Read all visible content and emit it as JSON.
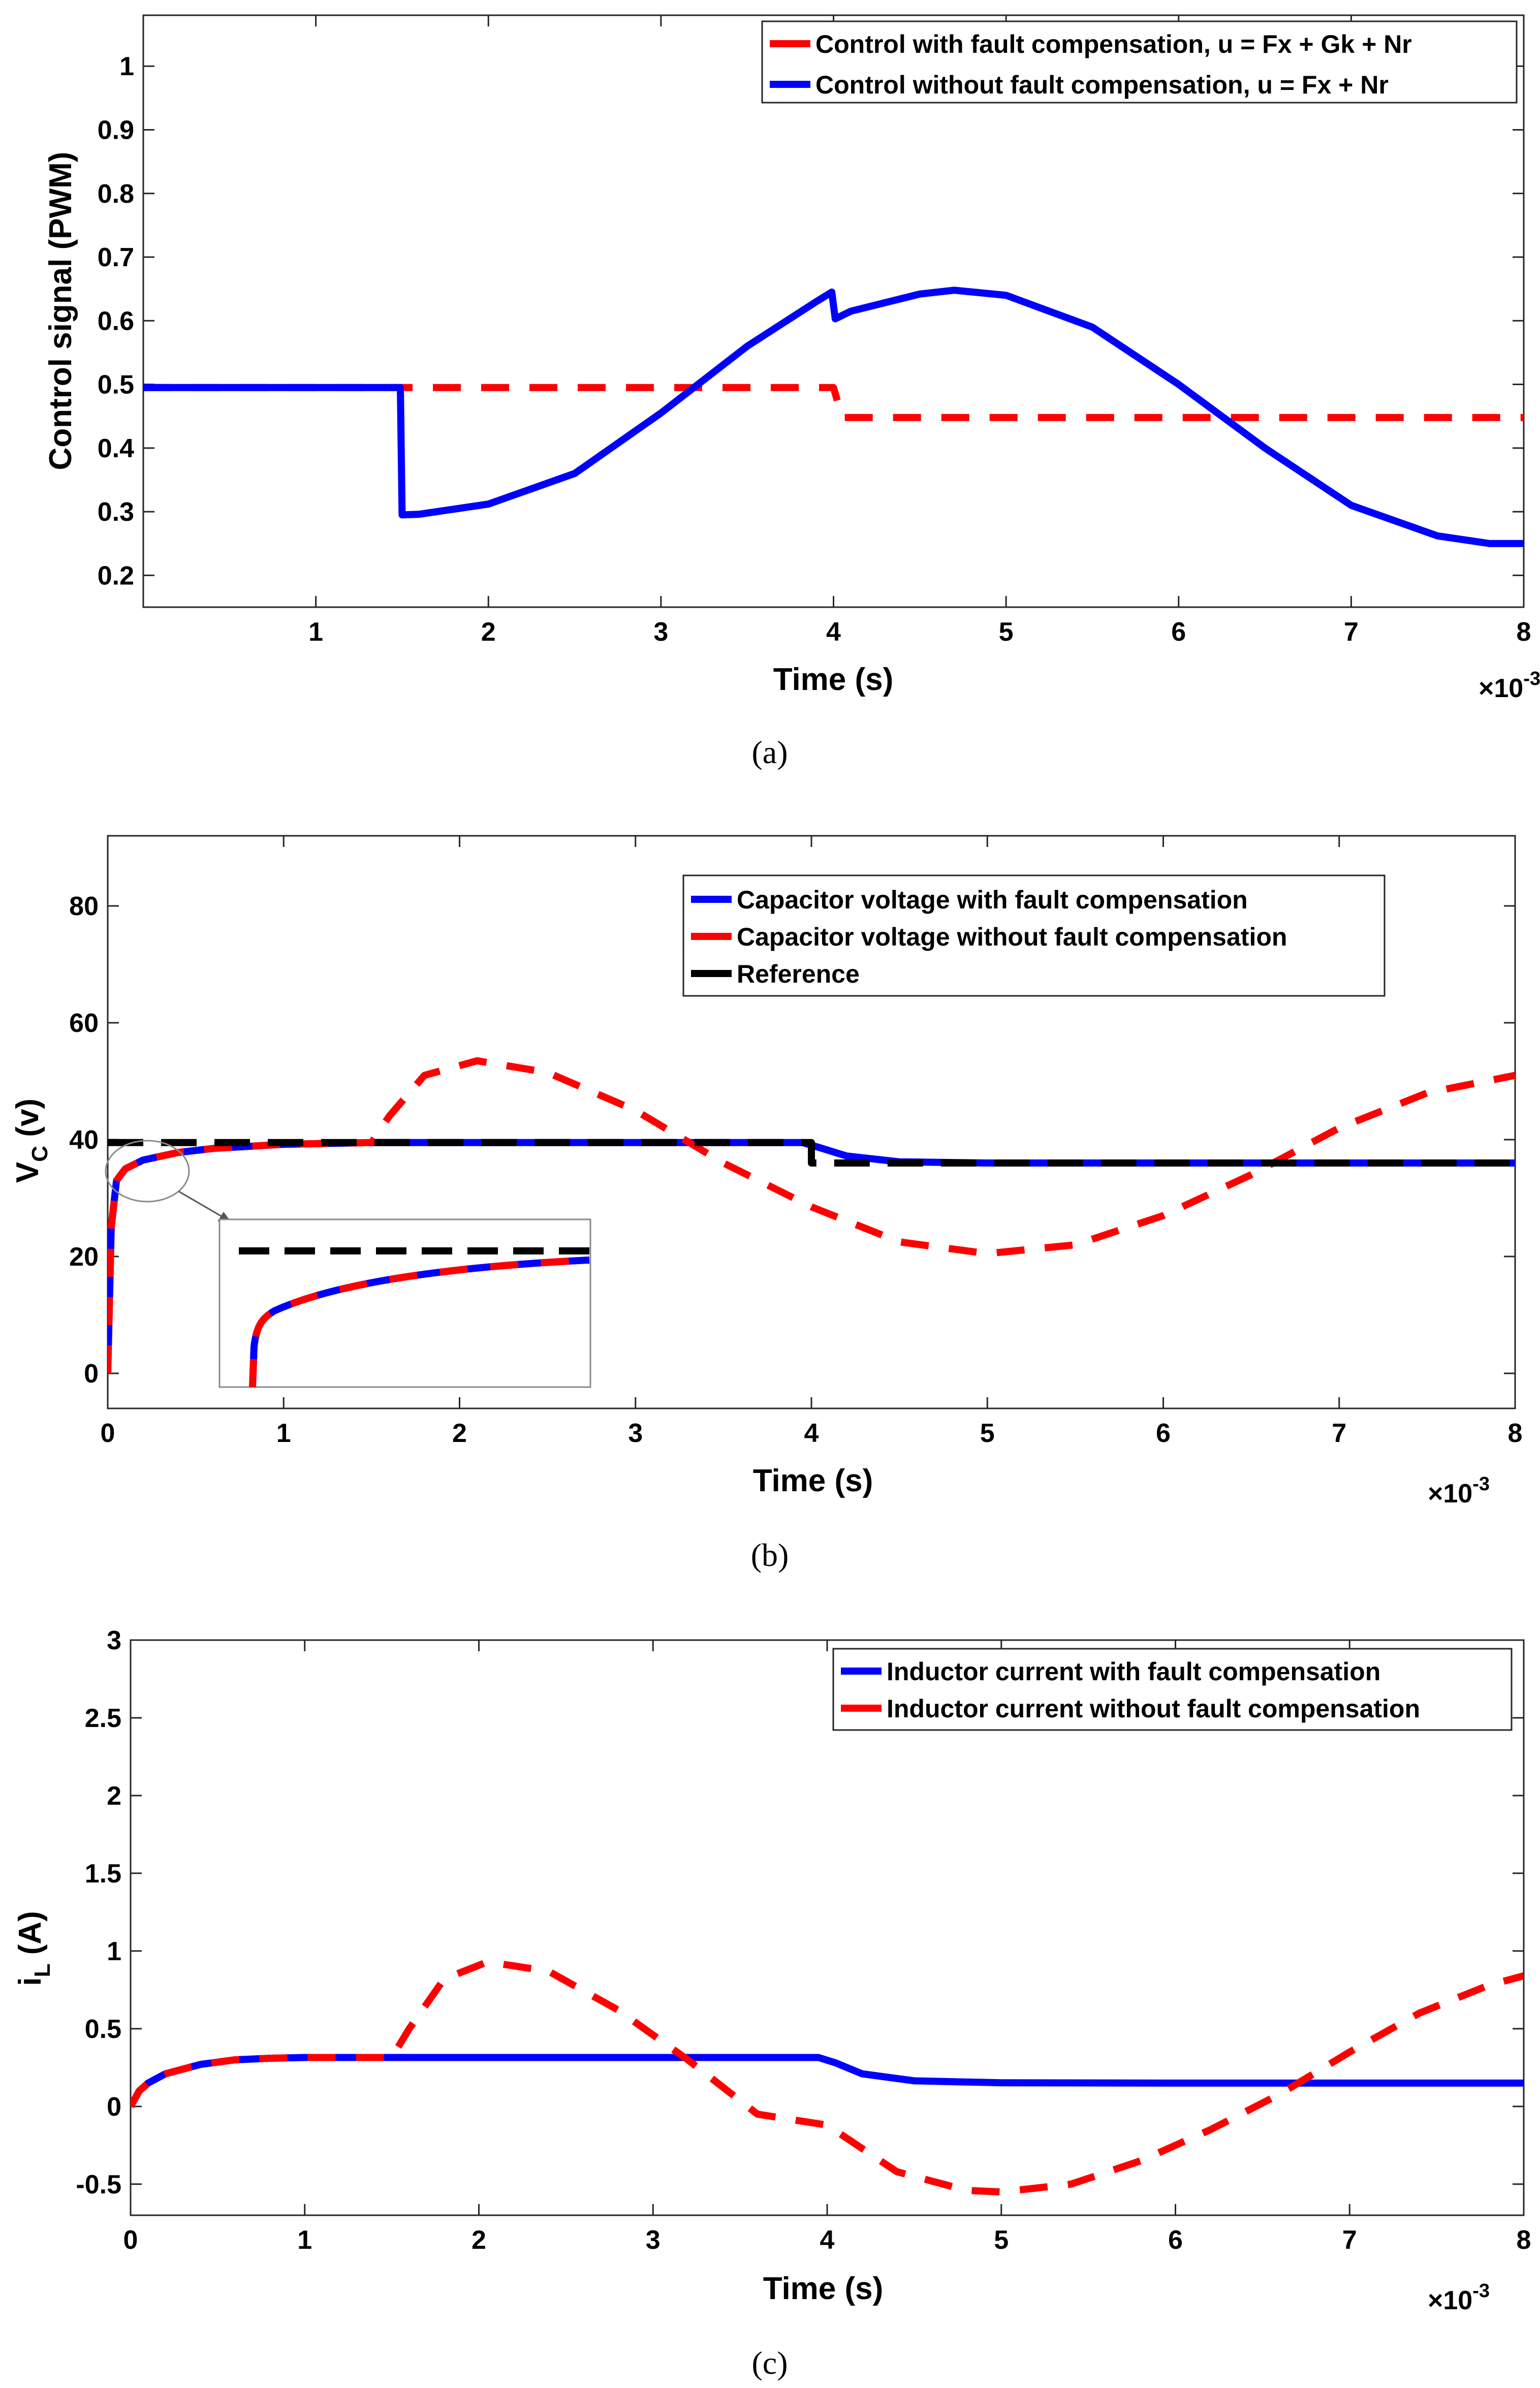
{
  "chart_data": [
    {
      "type": "line",
      "caption": "(a)",
      "xlabel": "Time (s)",
      "ylabel": "Control signal (PWM)",
      "x_multiplier": "×10",
      "x_multiplier_exp": "-3",
      "xlim": [
        0,
        8
      ],
      "ylim": [
        0.15,
        1.08
      ],
      "xticks": [
        1,
        2,
        3,
        4,
        5,
        6,
        7,
        8
      ],
      "yticks": [
        0.2,
        0.3,
        0.4,
        0.5,
        0.6,
        0.7,
        0.8,
        0.9,
        1
      ],
      "ytick_labels": [
        "0.2",
        "0.3",
        "0.4",
        "0.5",
        "0.6",
        "0.7",
        "0.8",
        "0.9",
        "1"
      ],
      "legend_position": "top-right",
      "series": [
        {
          "name": "Control with fault compensation, u = Fx + Gk + Nr",
          "color": "#ff0000",
          "style": "dashed",
          "x": [
            0,
            1.5,
            1.5,
            4.0,
            4.05,
            8.0
          ],
          "y": [
            0.495,
            0.495,
            0.495,
            0.495,
            0.448,
            0.448
          ]
        },
        {
          "name": "Control without fault compensation, u = Fx + Nr",
          "color": "#0000ff",
          "style": "solid",
          "x": [
            0,
            1.49,
            1.5,
            1.6,
            2.0,
            2.5,
            3.0,
            3.5,
            3.9,
            3.99,
            4.01,
            4.1,
            4.5,
            4.7,
            5.0,
            5.5,
            6.0,
            6.5,
            7.0,
            7.5,
            7.8,
            8.0
          ],
          "y": [
            0.495,
            0.495,
            0.295,
            0.296,
            0.312,
            0.36,
            0.455,
            0.56,
            0.63,
            0.645,
            0.603,
            0.615,
            0.642,
            0.648,
            0.64,
            0.59,
            0.5,
            0.4,
            0.31,
            0.262,
            0.25,
            0.25
          ]
        }
      ]
    },
    {
      "type": "line",
      "caption": "(b)",
      "xlabel": "Time (s)",
      "ylabel_main": "V",
      "ylabel_sub": "C",
      "ylabel_unit": " (v)",
      "x_multiplier": "×10",
      "x_multiplier_exp": "-3",
      "xlim": [
        0,
        8
      ],
      "ylim": [
        -6,
        92
      ],
      "xticks": [
        0,
        1,
        2,
        3,
        4,
        5,
        6,
        7,
        8
      ],
      "yticks": [
        0,
        20,
        40,
        60,
        80
      ],
      "legend_position": "upper-right",
      "inset": "zoom of the initial voltage rise (around 0–1 ×10⁻³ s, 34–40 v)",
      "series": [
        {
          "name": "Capacitor voltage with fault compensation",
          "color": "#0000ff",
          "style": "solid",
          "x": [
            0,
            0.02,
            0.05,
            0.1,
            0.2,
            0.4,
            0.6,
            1.0,
            1.5,
            2.0,
            3.0,
            3.95,
            4.05,
            4.2,
            4.5,
            5.0,
            6.0,
            7.0,
            8.0
          ],
          "y": [
            0,
            25,
            33,
            35,
            36.5,
            37.8,
            38.5,
            39.2,
            39.5,
            39.5,
            39.5,
            39.5,
            38.6,
            37.2,
            36.2,
            36,
            36,
            36,
            36
          ]
        },
        {
          "name": "Capacitor voltage without fault compensation",
          "color": "#ff0000",
          "style": "dashed",
          "x": [
            0,
            0.02,
            0.05,
            0.1,
            0.2,
            0.4,
            0.6,
            1.0,
            1.5,
            1.6,
            1.8,
            2.1,
            2.5,
            3.0,
            3.5,
            4.0,
            4.5,
            5.0,
            5.5,
            6.0,
            6.5,
            7.0,
            7.5,
            8.0
          ],
          "y": [
            0,
            25,
            33,
            35,
            36.5,
            37.8,
            38.5,
            39.2,
            39.5,
            44,
            51,
            53.5,
            51.5,
            45,
            36,
            28.5,
            22.5,
            20.5,
            22,
            27,
            34,
            42,
            48,
            51
          ]
        },
        {
          "name": "Reference",
          "color": "#000000",
          "style": "dashed",
          "x": [
            0,
            4.0,
            4.0,
            8.0
          ],
          "y": [
            39.5,
            39.5,
            36,
            36
          ]
        }
      ]
    },
    {
      "type": "line",
      "caption": "(c)",
      "xlabel": "Time (s)",
      "ylabel_main": "i",
      "ylabel_sub": "L",
      "ylabel_unit": " (A)",
      "x_multiplier": "×10",
      "x_multiplier_exp": "-3",
      "xlim": [
        0,
        8
      ],
      "ylim": [
        -0.7,
        3.0
      ],
      "xticks": [
        0,
        1,
        2,
        3,
        4,
        5,
        6,
        7,
        8
      ],
      "yticks": [
        -0.5,
        0,
        0.5,
        1,
        1.5,
        2,
        2.5,
        3
      ],
      "ytick_labels": [
        "-0.5",
        "0",
        "0.5",
        "1",
        "1.5",
        "2",
        "2.5",
        "3"
      ],
      "legend_position": "top-right",
      "series": [
        {
          "name": "Inductor current with fault compensation",
          "color": "#0000ff",
          "style": "solid",
          "x": [
            0,
            0.05,
            0.1,
            0.2,
            0.4,
            0.6,
            0.8,
            1.0,
            2.0,
            3.0,
            3.95,
            4.05,
            4.2,
            4.5,
            5.0,
            6.0,
            7.0,
            8.0
          ],
          "y": [
            0,
            0.1,
            0.15,
            0.21,
            0.27,
            0.3,
            0.31,
            0.315,
            0.315,
            0.315,
            0.315,
            0.28,
            0.21,
            0.165,
            0.152,
            0.15,
            0.15,
            0.15
          ]
        },
        {
          "name": "Inductor current without fault compensation",
          "color": "#ff0000",
          "style": "dashed",
          "x": [
            0,
            0.05,
            0.1,
            0.2,
            0.4,
            0.6,
            0.8,
            1.0,
            1.5,
            1.6,
            1.8,
            2.05,
            2.4,
            2.8,
            3.2,
            3.6,
            4.0,
            4.4,
            4.8,
            5.0,
            5.4,
            5.8,
            6.2,
            6.6,
            7.0,
            7.4,
            7.8,
            8.0
          ],
          "y": [
            0,
            0.1,
            0.15,
            0.21,
            0.27,
            0.3,
            0.31,
            0.315,
            0.315,
            0.5,
            0.82,
            0.93,
            0.87,
            0.62,
            0.3,
            -0.05,
            -0.12,
            -0.42,
            -0.54,
            -0.55,
            -0.5,
            -0.35,
            -0.15,
            0.08,
            0.35,
            0.6,
            0.78,
            0.84
          ]
        }
      ]
    }
  ]
}
